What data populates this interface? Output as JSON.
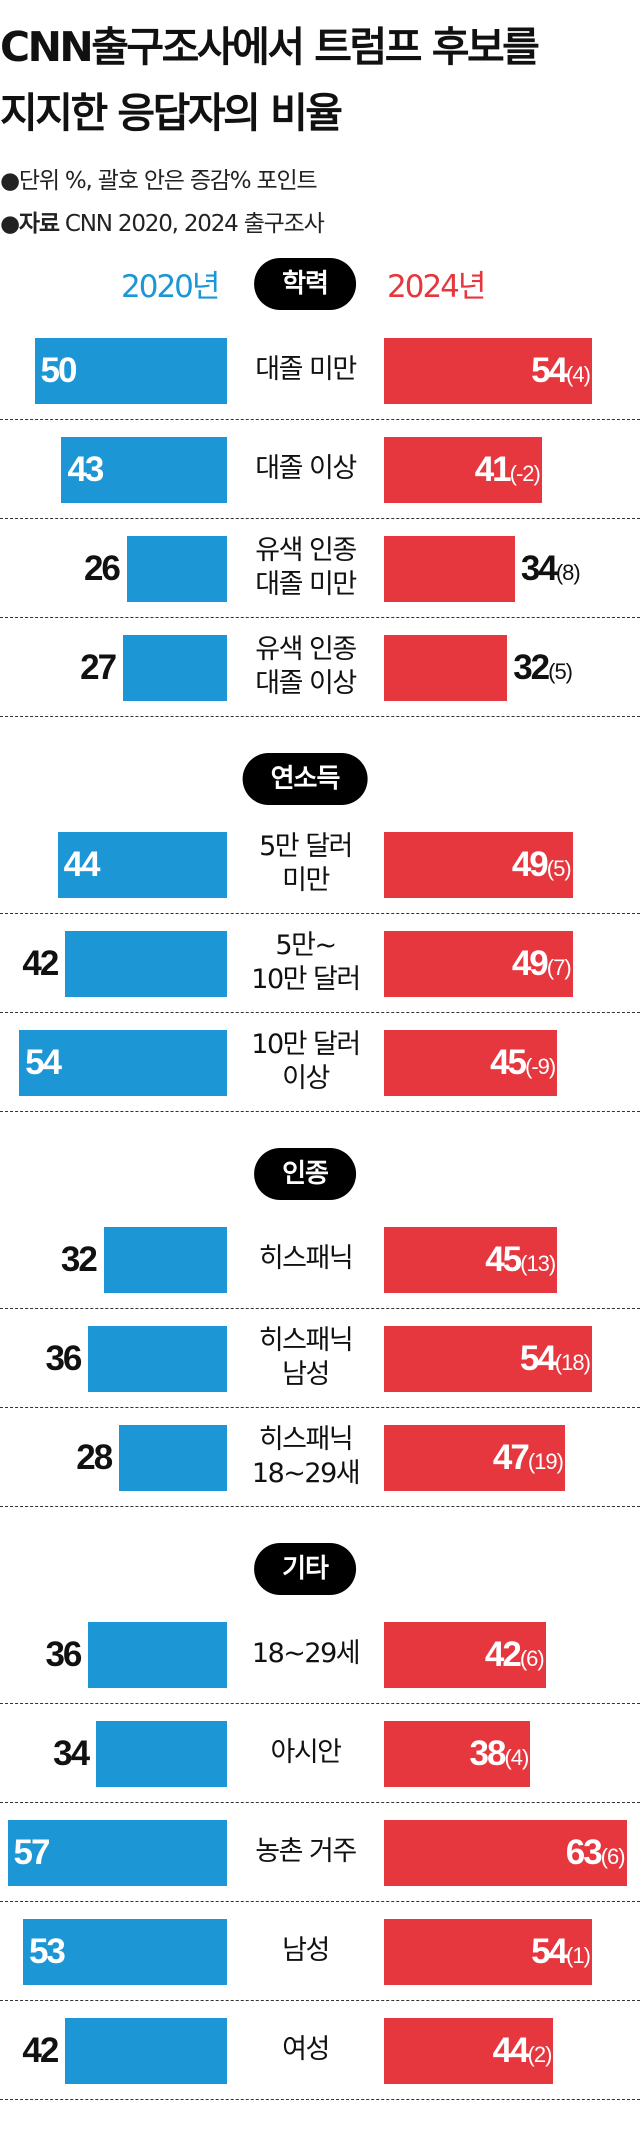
{
  "title": "CNN출구조사에서 트럼프 후보를\n지지한 응답자의 비율",
  "subtitle": {
    "unit_bullet": "●",
    "unit_label": "단위",
    "unit_text": " %, 괄호 안은 증감% 포인트",
    "source_bullet": "●",
    "source_label": "자료",
    "source_text": " CNN 2020, 2024 출구조사"
  },
  "colors": {
    "2020": "#1c96d5",
    "2024": "#e6363e"
  },
  "chart_data": {
    "type": "bar",
    "orientation": "horizontal-diverging",
    "series": [
      {
        "name": "2020년",
        "color": "#1c96d5"
      },
      {
        "name": "2024년",
        "color": "#e6363e"
      }
    ],
    "unit": "%",
    "sections": [
      {
        "title": "학력",
        "rows": [
          {
            "label": "대졸 미만",
            "v2020": 50,
            "v2024": 54,
            "change": 4
          },
          {
            "label": "대졸 이상",
            "v2020": 43,
            "v2024": 41,
            "change": -2
          },
          {
            "label": "유색 인종\n대졸 미만",
            "v2020": 26,
            "v2024": 34,
            "change": 8
          },
          {
            "label": "유색 인종\n대졸 이상",
            "v2020": 27,
            "v2024": 32,
            "change": 5
          }
        ]
      },
      {
        "title": "연소득",
        "rows": [
          {
            "label": "5만 달러\n미만",
            "v2020": 44,
            "v2024": 49,
            "change": 5
          },
          {
            "label": "5만~\n10만 달러",
            "v2020": 42,
            "v2024": 49,
            "change": 7
          },
          {
            "label": "10만 달러\n이상",
            "v2020": 54,
            "v2024": 45,
            "change": -9
          }
        ]
      },
      {
        "title": "인종",
        "rows": [
          {
            "label": "히스패닉",
            "v2020": 32,
            "v2024": 45,
            "change": 13
          },
          {
            "label": "히스패닉\n남성",
            "v2020": 36,
            "v2024": 54,
            "change": 18
          },
          {
            "label": "히스패닉\n18~29새",
            "v2020": 28,
            "v2024": 47,
            "change": 19
          }
        ]
      },
      {
        "title": "기타",
        "rows": [
          {
            "label": "18~29세",
            "v2020": 36,
            "v2024": 42,
            "change": 6
          },
          {
            "label": "아시안",
            "v2020": 34,
            "v2024": 38,
            "change": 4
          },
          {
            "label": "농촌 거주",
            "v2020": 57,
            "v2024": 63,
            "change": 6
          },
          {
            "label": "남성",
            "v2020": 53,
            "v2024": 54,
            "change": 1
          },
          {
            "label": "여성",
            "v2020": 42,
            "v2024": 44,
            "change": 2
          }
        ]
      }
    ]
  }
}
